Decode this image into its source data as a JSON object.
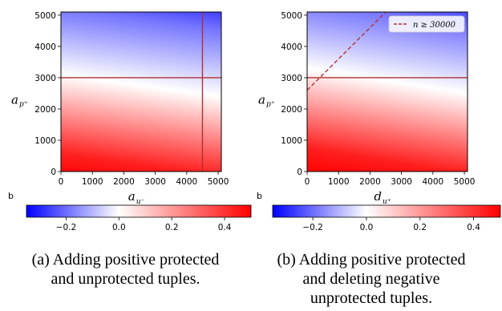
{
  "chart_data": [
    {
      "type": "heatmap",
      "panel": "a",
      "xlabel": {
        "main": "a",
        "sub": "u⁻"
      },
      "ylabel": {
        "main": "a",
        "sub": "p⁺"
      },
      "xlim": [
        0,
        5100
      ],
      "ylim": [
        0,
        5100
      ],
      "x_ticks": [
        0,
        1000,
        2000,
        3000,
        4000,
        5000
      ],
      "y_ticks": [
        0,
        1000,
        2000,
        3000,
        4000,
        5000
      ],
      "zero_contour": {
        "x": [
          0,
          5100
        ],
        "y": [
          3100,
          2400
        ]
      },
      "lines": [
        {
          "orientation": "horizontal",
          "y": 3000,
          "color": "#b03030",
          "style": "solid"
        },
        {
          "orientation": "vertical",
          "x": 4500,
          "color": "#b03030",
          "style": "solid"
        }
      ],
      "colorbar": {
        "label": "b",
        "range": [
          -0.35,
          0.5
        ],
        "ticks": [
          -0.2,
          0.0,
          0.2,
          0.4
        ],
        "tick_labels": [
          "−0.2",
          "0.0",
          "0.2",
          "0.4"
        ]
      },
      "caption": [
        "(a) Adding positive protected",
        "and unprotected tuples."
      ]
    },
    {
      "type": "heatmap",
      "panel": "b",
      "xlabel": {
        "main": "d",
        "sub": "u⁺"
      },
      "ylabel": {
        "main": "a",
        "sub": "p⁺"
      },
      "xlim": [
        0,
        5100
      ],
      "ylim": [
        0,
        5100
      ],
      "x_ticks": [
        0,
        1000,
        2000,
        3000,
        4000,
        5000
      ],
      "y_ticks": [
        0,
        1000,
        2000,
        3000,
        4000,
        5000
      ],
      "zero_contour": {
        "x": [
          0,
          5100
        ],
        "y": [
          3300,
          2500
        ]
      },
      "lines": [
        {
          "orientation": "horizontal",
          "y": 3000,
          "color": "#b03030",
          "style": "solid"
        },
        {
          "orientation": "diagonal",
          "x": [
            0,
            2500
          ],
          "y": [
            2600,
            5100
          ],
          "color": "#b03030",
          "style": "dashed",
          "legend": "n ≥ 30000"
        }
      ],
      "legend": {
        "entries": [
          "n ≥ 30000"
        ],
        "placement": "top-right"
      },
      "colorbar": {
        "label": "b",
        "range": [
          -0.35,
          0.5
        ],
        "ticks": [
          -0.2,
          0.0,
          0.2,
          0.4
        ],
        "tick_labels": [
          "−0.2",
          "0.0",
          "0.2",
          "0.4"
        ]
      },
      "caption": [
        "(b) Adding positive protected",
        "and deleting negative",
        "unprotected tuples."
      ]
    }
  ],
  "colors": {
    "negative": "#0000ff",
    "neutral": "#ffffff",
    "positive": "#ff0000",
    "line": "#b03030",
    "frame": "#000000"
  }
}
